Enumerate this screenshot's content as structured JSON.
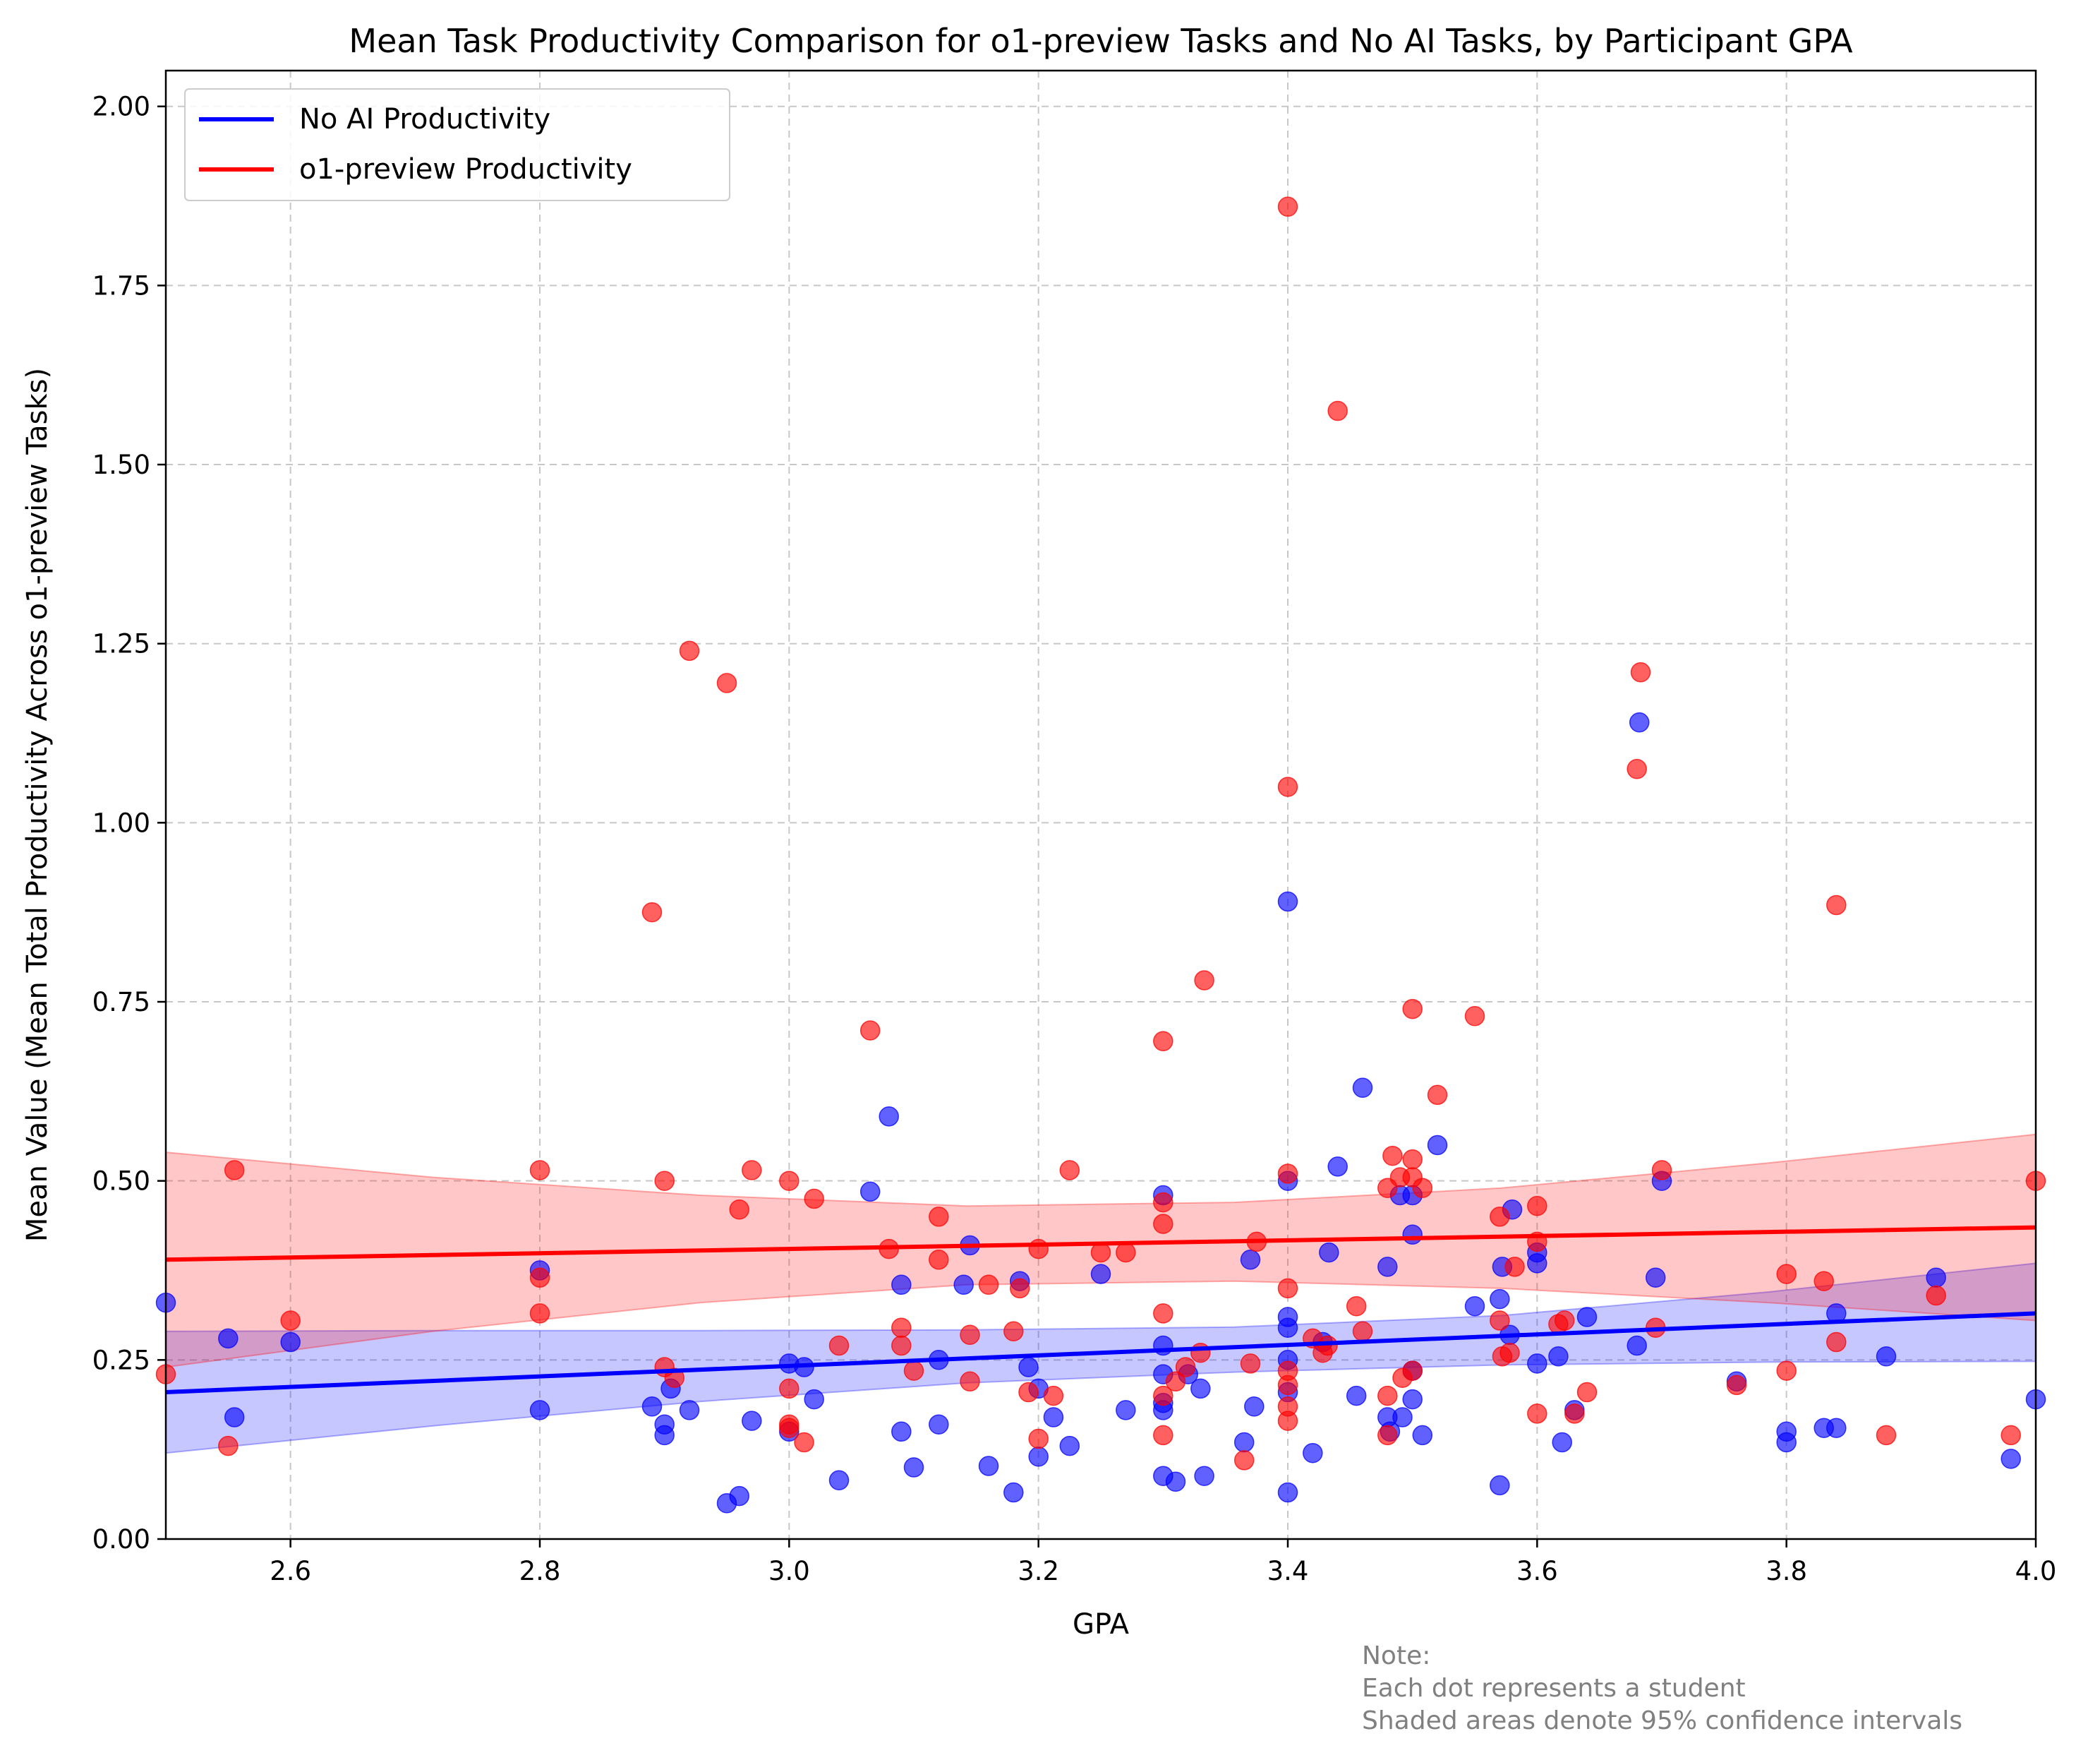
{
  "chart_data": {
    "type": "scatter",
    "title": "Mean Task Productivity Comparison for o1-preview Tasks and No AI Tasks, by Participant GPA",
    "xlabel": "GPA",
    "ylabel": "Mean Value (Mean Total Productivity Across o1-preview Tasks)",
    "xlim": [
      2.5,
      4.0
    ],
    "ylim": [
      0.0,
      2.05
    ],
    "x_ticks": [
      "2.6",
      "2.8",
      "3.0",
      "3.2",
      "3.4",
      "3.6",
      "3.8",
      "4.0"
    ],
    "y_ticks": [
      "0.00",
      "0.25",
      "0.50",
      "0.75",
      "1.00",
      "1.25",
      "1.50",
      "1.75",
      "2.00"
    ],
    "grid": true,
    "legend_position": "upper-left",
    "series": [
      {
        "name": "No AI Productivity",
        "color": "#0000ff",
        "points": [
          [
            2.5,
            0.33
          ],
          [
            2.55,
            0.28
          ],
          [
            2.555,
            0.17
          ],
          [
            2.6,
            0.275
          ],
          [
            2.8,
            0.375
          ],
          [
            2.8,
            0.18
          ],
          [
            2.89,
            0.185
          ],
          [
            2.9,
            0.16
          ],
          [
            2.9,
            0.145
          ],
          [
            2.905,
            0.21
          ],
          [
            2.92,
            0.18
          ],
          [
            2.95,
            0.05
          ],
          [
            2.96,
            0.06
          ],
          [
            2.97,
            0.165
          ],
          [
            3.0,
            0.245
          ],
          [
            3.0,
            0.15
          ],
          [
            3.012,
            0.24
          ],
          [
            3.02,
            0.195
          ],
          [
            3.04,
            0.082
          ],
          [
            3.065,
            0.485
          ],
          [
            3.08,
            0.59
          ],
          [
            3.09,
            0.355
          ],
          [
            3.09,
            0.15
          ],
          [
            3.1,
            0.1
          ],
          [
            3.12,
            0.25
          ],
          [
            3.12,
            0.16
          ],
          [
            3.145,
            0.41
          ],
          [
            3.14,
            0.355
          ],
          [
            3.16,
            0.102
          ],
          [
            3.18,
            0.065
          ],
          [
            3.185,
            0.36
          ],
          [
            3.192,
            0.24
          ],
          [
            3.2,
            0.21
          ],
          [
            3.2,
            0.115
          ],
          [
            3.212,
            0.17
          ],
          [
            3.225,
            0.13
          ],
          [
            3.25,
            0.37
          ],
          [
            3.27,
            0.18
          ],
          [
            3.3,
            0.48
          ],
          [
            3.3,
            0.27
          ],
          [
            3.3,
            0.23
          ],
          [
            3.3,
            0.19
          ],
          [
            3.3,
            0.18
          ],
          [
            3.3,
            0.088
          ],
          [
            3.31,
            0.08
          ],
          [
            3.32,
            0.23
          ],
          [
            3.33,
            0.21
          ],
          [
            3.333,
            0.088
          ],
          [
            3.365,
            0.135
          ],
          [
            3.37,
            0.39
          ],
          [
            3.373,
            0.185
          ],
          [
            3.4,
            0.89
          ],
          [
            3.4,
            0.5
          ],
          [
            3.4,
            0.31
          ],
          [
            3.4,
            0.295
          ],
          [
            3.4,
            0.25
          ],
          [
            3.4,
            0.205
          ],
          [
            3.4,
            0.065
          ],
          [
            3.42,
            0.12
          ],
          [
            3.428,
            0.275
          ],
          [
            3.433,
            0.4
          ],
          [
            3.44,
            0.52
          ],
          [
            3.455,
            0.2
          ],
          [
            3.46,
            0.63
          ],
          [
            3.48,
            0.38
          ],
          [
            3.48,
            0.17
          ],
          [
            3.482,
            0.15
          ],
          [
            3.49,
            0.48
          ],
          [
            3.492,
            0.17
          ],
          [
            3.5,
            0.48
          ],
          [
            3.5,
            0.425
          ],
          [
            3.5,
            0.235
          ],
          [
            3.5,
            0.195
          ],
          [
            3.508,
            0.145
          ],
          [
            3.52,
            0.55
          ],
          [
            3.55,
            0.325
          ],
          [
            3.57,
            0.335
          ],
          [
            3.572,
            0.38
          ],
          [
            3.57,
            0.075
          ],
          [
            3.578,
            0.285
          ],
          [
            3.58,
            0.46
          ],
          [
            3.6,
            0.4
          ],
          [
            3.6,
            0.385
          ],
          [
            3.6,
            0.245
          ],
          [
            3.617,
            0.255
          ],
          [
            3.62,
            0.135
          ],
          [
            3.63,
            0.18
          ],
          [
            3.64,
            0.31
          ],
          [
            3.68,
            0.27
          ],
          [
            3.682,
            1.14
          ],
          [
            3.695,
            0.365
          ],
          [
            3.7,
            0.5
          ],
          [
            3.76,
            0.22
          ],
          [
            3.8,
            0.15
          ],
          [
            3.8,
            0.135
          ],
          [
            3.83,
            0.155
          ],
          [
            3.84,
            0.315
          ],
          [
            3.84,
            0.155
          ],
          [
            3.88,
            0.255
          ],
          [
            3.92,
            0.365
          ],
          [
            3.98,
            0.112
          ],
          [
            4.0,
            0.195
          ]
        ],
        "fit": [
          0.205,
          0.315
        ],
        "ci_lower": [
          0.12,
          0.158,
          0.192,
          0.218,
          0.233,
          0.243,
          0.247,
          0.248
        ],
        "ci_upper": [
          0.29,
          0.291,
          0.291,
          0.292,
          0.296,
          0.312,
          0.345,
          0.385
        ]
      },
      {
        "name": "o1-preview Productivity",
        "color": "#ff0000",
        "points": [
          [
            2.5,
            0.23
          ],
          [
            2.55,
            0.13
          ],
          [
            2.555,
            0.515
          ],
          [
            2.6,
            0.305
          ],
          [
            2.8,
            0.515
          ],
          [
            2.8,
            0.365
          ],
          [
            2.8,
            0.315
          ],
          [
            2.89,
            0.875
          ],
          [
            2.9,
            0.5
          ],
          [
            2.9,
            0.24
          ],
          [
            2.908,
            0.225
          ],
          [
            2.92,
            1.24
          ],
          [
            2.95,
            1.195
          ],
          [
            2.96,
            0.46
          ],
          [
            2.97,
            0.515
          ],
          [
            3.0,
            0.5
          ],
          [
            3.0,
            0.21
          ],
          [
            3.0,
            0.16
          ],
          [
            3.0,
            0.155
          ],
          [
            3.012,
            0.135
          ],
          [
            3.02,
            0.475
          ],
          [
            3.04,
            0.27
          ],
          [
            3.065,
            0.71
          ],
          [
            3.08,
            0.405
          ],
          [
            3.09,
            0.295
          ],
          [
            3.09,
            0.27
          ],
          [
            3.1,
            0.235
          ],
          [
            3.12,
            0.45
          ],
          [
            3.12,
            0.39
          ],
          [
            3.145,
            0.285
          ],
          [
            3.145,
            0.22
          ],
          [
            3.16,
            0.355
          ],
          [
            3.18,
            0.29
          ],
          [
            3.185,
            0.35
          ],
          [
            3.192,
            0.205
          ],
          [
            3.2,
            0.405
          ],
          [
            3.2,
            0.14
          ],
          [
            3.212,
            0.2
          ],
          [
            3.225,
            0.515
          ],
          [
            3.25,
            0.4
          ],
          [
            3.27,
            0.4
          ],
          [
            3.3,
            0.695
          ],
          [
            3.3,
            0.47
          ],
          [
            3.3,
            0.44
          ],
          [
            3.3,
            0.315
          ],
          [
            3.3,
            0.2
          ],
          [
            3.3,
            0.145
          ],
          [
            3.31,
            0.22
          ],
          [
            3.318,
            0.24
          ],
          [
            3.333,
            0.78
          ],
          [
            3.33,
            0.26
          ],
          [
            3.365,
            0.11
          ],
          [
            3.37,
            0.245
          ],
          [
            3.375,
            0.415
          ],
          [
            3.4,
            1.86
          ],
          [
            3.4,
            1.05
          ],
          [
            3.4,
            0.51
          ],
          [
            3.4,
            0.35
          ],
          [
            3.4,
            0.235
          ],
          [
            3.4,
            0.215
          ],
          [
            3.4,
            0.185
          ],
          [
            3.4,
            0.165
          ],
          [
            3.42,
            0.28
          ],
          [
            3.428,
            0.26
          ],
          [
            3.432,
            0.27
          ],
          [
            3.44,
            1.575
          ],
          [
            3.455,
            0.325
          ],
          [
            3.46,
            0.29
          ],
          [
            3.48,
            0.49
          ],
          [
            3.48,
            0.2
          ],
          [
            3.48,
            0.145
          ],
          [
            3.484,
            0.535
          ],
          [
            3.49,
            0.505
          ],
          [
            3.492,
            0.225
          ],
          [
            3.5,
            0.74
          ],
          [
            3.5,
            0.53
          ],
          [
            3.5,
            0.505
          ],
          [
            3.5,
            0.235
          ],
          [
            3.508,
            0.49
          ],
          [
            3.52,
            0.62
          ],
          [
            3.55,
            0.73
          ],
          [
            3.57,
            0.45
          ],
          [
            3.57,
            0.305
          ],
          [
            3.572,
            0.255
          ],
          [
            3.578,
            0.26
          ],
          [
            3.582,
            0.38
          ],
          [
            3.6,
            0.465
          ],
          [
            3.6,
            0.415
          ],
          [
            3.6,
            0.175
          ],
          [
            3.617,
            0.3
          ],
          [
            3.622,
            0.305
          ],
          [
            3.63,
            0.175
          ],
          [
            3.64,
            0.205
          ],
          [
            3.68,
            1.075
          ],
          [
            3.683,
            1.21
          ],
          [
            3.695,
            0.295
          ],
          [
            3.7,
            0.515
          ],
          [
            3.76,
            0.215
          ],
          [
            3.8,
            0.37
          ],
          [
            3.8,
            0.235
          ],
          [
            3.83,
            0.36
          ],
          [
            3.84,
            0.885
          ],
          [
            3.84,
            0.275
          ],
          [
            3.88,
            0.145
          ],
          [
            3.92,
            0.34
          ],
          [
            3.98,
            0.145
          ],
          [
            4.0,
            0.5
          ]
        ],
        "fit": [
          0.39,
          0.435
        ],
        "ci_lower": [
          0.24,
          0.29,
          0.33,
          0.355,
          0.36,
          0.35,
          0.33,
          0.305
        ],
        "ci_upper": [
          0.54,
          0.505,
          0.48,
          0.465,
          0.47,
          0.49,
          0.525,
          0.565
        ]
      }
    ],
    "annotation": {
      "lines": [
        "Note:",
        "Each dot represents a student",
        "Shaded areas denote 95% confidence intervals"
      ]
    }
  }
}
